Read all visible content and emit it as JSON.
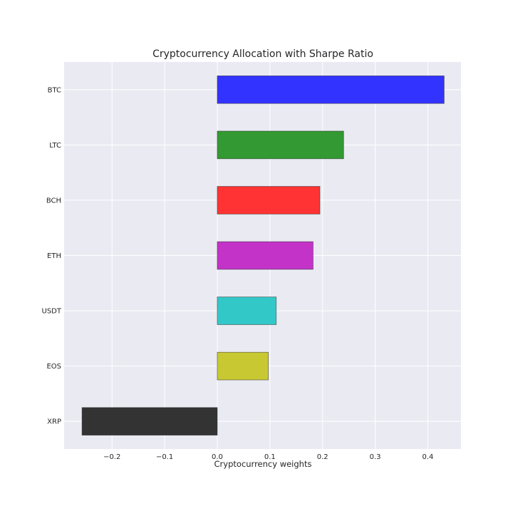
{
  "chart_data": {
    "type": "bar",
    "orientation": "horizontal",
    "title": "Cryptocurrency Allocation with Sharpe Ratio",
    "xlabel": "Cryptocurrency weights",
    "ylabel": "",
    "categories": [
      "BTC",
      "LTC",
      "BCH",
      "ETH",
      "USDT",
      "EOS",
      "XRP"
    ],
    "values": [
      0.431,
      0.24,
      0.195,
      0.182,
      0.112,
      0.097,
      -0.257
    ],
    "colors": [
      "#3333ff",
      "#339933",
      "#ff3333",
      "#c333c8",
      "#33c8c8",
      "#c8c833",
      "#333333"
    ],
    "xlim": [
      -0.291,
      0.463
    ],
    "xticks": [
      -0.2,
      -0.1,
      0.0,
      0.1,
      0.2,
      0.3,
      0.4
    ],
    "xtick_labels": [
      "−0.2",
      "−0.1",
      "0.0",
      "0.1",
      "0.2",
      "0.3",
      "0.4"
    ],
    "grid": true,
    "legend": "none",
    "background": "#eaeaf2"
  }
}
